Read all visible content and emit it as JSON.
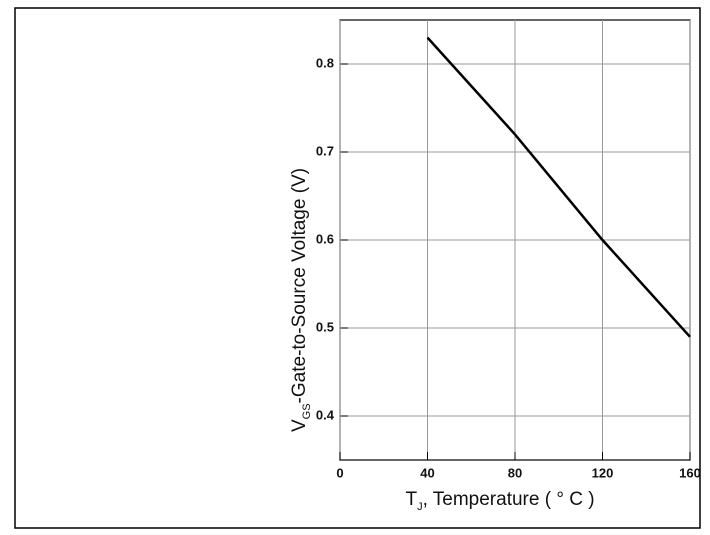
{
  "chart_data": {
    "type": "line",
    "y_label": {
      "symbol": "V",
      "subscript": "GS",
      "text": "-Gate-to-Source Voltage (V)"
    },
    "x_label": {
      "symbol": "T",
      "subscript": "J",
      "text": ", Temperature ( ° C )"
    },
    "x": [
      40,
      80,
      120,
      160
    ],
    "series": [
      {
        "color": "#000000",
        "values": [
          0.83,
          0.72,
          0.6,
          0.49
        ]
      }
    ],
    "xlim": [
      0,
      160
    ],
    "xticks": [
      0,
      40,
      80,
      120,
      160
    ],
    "ylim": [
      0.35,
      0.85
    ],
    "yticks": [
      0.4,
      0.5,
      0.6,
      0.7,
      0.8
    ],
    "grid": true
  }
}
